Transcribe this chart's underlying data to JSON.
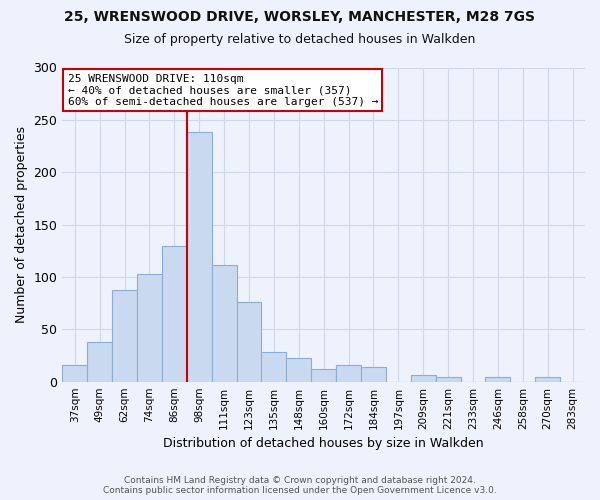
{
  "title": "25, WRENSWOOD DRIVE, WORSLEY, MANCHESTER, M28 7GS",
  "subtitle": "Size of property relative to detached houses in Walkden",
  "xlabel": "Distribution of detached houses by size in Walkden",
  "ylabel": "Number of detached properties",
  "bar_labels": [
    "37sqm",
    "49sqm",
    "62sqm",
    "74sqm",
    "86sqm",
    "98sqm",
    "111sqm",
    "123sqm",
    "135sqm",
    "148sqm",
    "160sqm",
    "172sqm",
    "184sqm",
    "197sqm",
    "209sqm",
    "221sqm",
    "233sqm",
    "246sqm",
    "258sqm",
    "270sqm",
    "283sqm"
  ],
  "bar_values": [
    16,
    38,
    88,
    103,
    130,
    238,
    111,
    76,
    28,
    23,
    12,
    16,
    14,
    0,
    6,
    4,
    0,
    4,
    0,
    4,
    0
  ],
  "bar_color": "#c9d9f0",
  "bar_edge_color": "#8bafd4",
  "highlight_index": 5,
  "highlight_line_color": "#cc0000",
  "annotation_text": "25 WRENSWOOD DRIVE: 110sqm\n← 40% of detached houses are smaller (357)\n60% of semi-detached houses are larger (537) →",
  "annotation_box_color": "#ffffff",
  "annotation_box_edge": "#cc0000",
  "ylim": [
    0,
    300
  ],
  "yticks": [
    0,
    50,
    100,
    150,
    200,
    250,
    300
  ],
  "footer": "Contains HM Land Registry data © Crown copyright and database right 2024.\nContains public sector information licensed under the Open Government Licence v3.0.",
  "bg_color": "#eef2fc"
}
